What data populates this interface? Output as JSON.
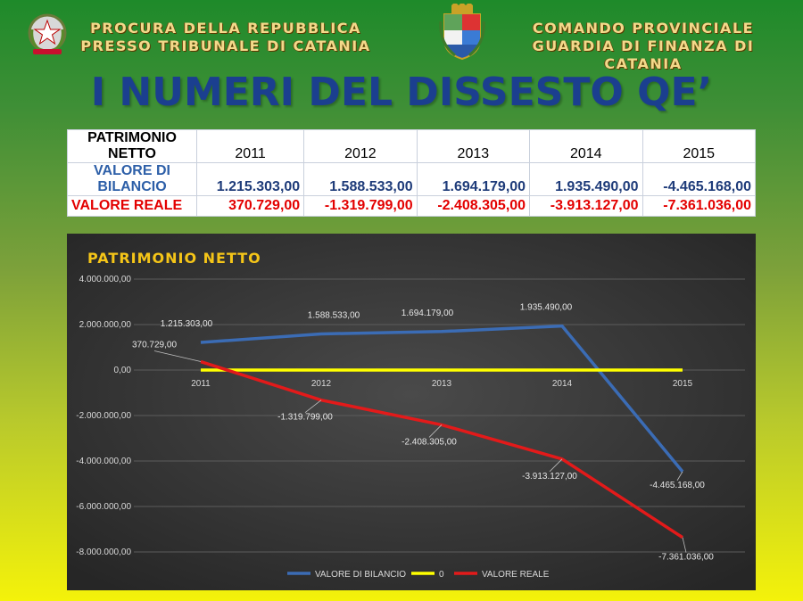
{
  "header": {
    "left_line1": "PROCURA DELLA REPUBBLICA",
    "left_line2": "PRESSO TRIBUNALE DI CATANIA",
    "right_line1": "COMANDO PROVINCIALE",
    "right_line2": "GUARDIA DI FINANZA DI CATANIA"
  },
  "title": "I NUMERI DEL DISSESTO QE’",
  "table": {
    "header_label": "PATRIMONIO NETTO",
    "years": [
      "2011",
      "2012",
      "2013",
      "2014",
      "2015"
    ],
    "rows": [
      {
        "label": "VALORE DI BILANCIO",
        "values": [
          "1.215.303,00",
          "1.588.533,00",
          "1.694.179,00",
          "1.935.490,00",
          "-4.465.168,00"
        ]
      },
      {
        "label": "VALORE REALE",
        "values": [
          "370.729,00",
          "-1.319.799,00",
          "-2.408.305,00",
          "-3.913.127,00",
          "-7.361.036,00"
        ]
      }
    ]
  },
  "colors": {
    "title": "#1b3f8f",
    "chart_bg": "#3a3a3a",
    "bilancio": "#3b6cb5",
    "zero": "#ffff00",
    "reale": "#e31a1a",
    "chart_title": "#f5c518"
  },
  "chart_data": {
    "type": "line",
    "title": "PATRIMONIO NETTO",
    "categories": [
      "2011",
      "2012",
      "2013",
      "2014",
      "2015"
    ],
    "ylim": [
      -8000000,
      4000000
    ],
    "yticks": [
      4000000,
      2000000,
      0,
      -2000000,
      -4000000,
      -6000000,
      -8000000
    ],
    "ytick_labels": [
      "4.000.000,00",
      "2.000.000,00",
      "0,00",
      "-2.000.000,00",
      "-4.000.000,00",
      "-6.000.000,00",
      "-8.000.000,00"
    ],
    "grid": true,
    "legend": "bottom",
    "series": [
      {
        "name": "VALORE DI BILANCIO",
        "values": [
          1215303,
          1588533,
          1694179,
          1935490,
          -4465168
        ],
        "labels": [
          "1.215.303,00",
          "1.588.533,00",
          "1.694.179,00",
          "1.935.490,00",
          "-4.465.168,00"
        ]
      },
      {
        "name": "0",
        "values": [
          0,
          0,
          0,
          0,
          0
        ],
        "labels": []
      },
      {
        "name": "VALORE REALE",
        "values": [
          370729,
          -1319799,
          -2408305,
          -3913127,
          -7361036
        ],
        "labels": [
          "370.729,00",
          "-1.319.799,00",
          "-2.408.305,00",
          "-3.913.127,00",
          "-7.361.036,00"
        ]
      }
    ]
  }
}
